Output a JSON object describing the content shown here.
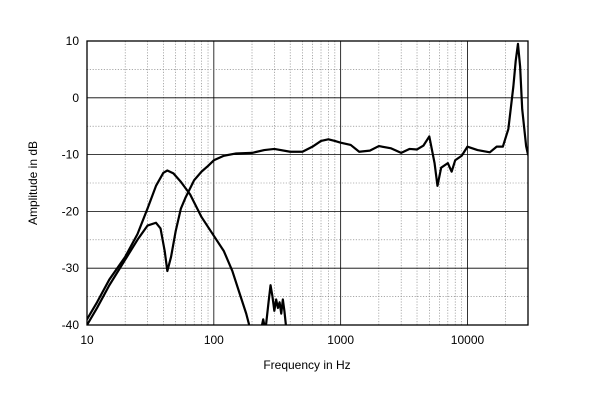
{
  "chart_data": {
    "type": "line",
    "title": "",
    "xlabel": "Frequency in Hz",
    "ylabel": "Amplitude in dB",
    "x_scale": "log",
    "xlim": [
      10,
      30000
    ],
    "ylim": [
      -40,
      10
    ],
    "x_ticks": [
      10,
      100,
      1000,
      10000
    ],
    "x_tick_labels": [
      "10",
      "100",
      "1000",
      "10000"
    ],
    "y_ticks": [
      10,
      0,
      -10,
      -20,
      -30,
      -40
    ],
    "y_tick_labels": [
      "10",
      "0",
      "-10",
      "-20",
      "-30",
      "-40"
    ],
    "grid": true,
    "legend": "none",
    "line_color": "#000000",
    "series": [
      {
        "points": [
          [
            10,
            -40
          ],
          [
            12,
            -37
          ],
          [
            15,
            -33
          ],
          [
            20,
            -28.5
          ],
          [
            25,
            -25
          ],
          [
            30,
            -22.5
          ],
          [
            35,
            -22
          ],
          [
            38,
            -23
          ],
          [
            41,
            -27
          ],
          [
            43,
            -30.5
          ],
          [
            46,
            -28
          ],
          [
            50,
            -23.5
          ],
          [
            55,
            -19.5
          ],
          [
            60,
            -17.5
          ],
          [
            70,
            -14.5
          ],
          [
            80,
            -13
          ],
          [
            90,
            -12
          ],
          [
            100,
            -11
          ],
          [
            120,
            -10.2
          ],
          [
            150,
            -9.8
          ],
          [
            200,
            -9.7
          ],
          [
            250,
            -9.2
          ],
          [
            300,
            -9.0
          ],
          [
            400,
            -9.5
          ],
          [
            500,
            -9.5
          ],
          [
            600,
            -8.6
          ],
          [
            700,
            -7.6
          ],
          [
            800,
            -7.3
          ],
          [
            900,
            -7.6
          ],
          [
            1000,
            -7.9
          ],
          [
            1200,
            -8.3
          ],
          [
            1400,
            -9.5
          ],
          [
            1700,
            -9.3
          ],
          [
            2000,
            -8.5
          ],
          [
            2500,
            -8.9
          ],
          [
            3000,
            -9.7
          ],
          [
            3500,
            -9.0
          ],
          [
            4000,
            -9.1
          ],
          [
            4500,
            -8.4
          ],
          [
            5000,
            -6.8
          ],
          [
            5500,
            -11.5
          ],
          [
            5800,
            -15.5
          ],
          [
            6200,
            -12.3
          ],
          [
            7000,
            -11.5
          ],
          [
            7500,
            -13
          ],
          [
            8000,
            -11
          ],
          [
            9000,
            -10.2
          ],
          [
            10000,
            -8.6
          ],
          [
            12000,
            -9.2
          ],
          [
            15000,
            -9.6
          ],
          [
            17000,
            -8.6
          ],
          [
            19000,
            -8.6
          ],
          [
            21000,
            -5.5
          ],
          [
            23000,
            2
          ],
          [
            24000,
            6.5
          ],
          [
            25000,
            9.5
          ],
          [
            26000,
            5.5
          ],
          [
            27000,
            -2
          ],
          [
            29000,
            -8.5
          ],
          [
            30000,
            -10
          ]
        ]
      },
      {
        "points": [
          [
            10,
            -39
          ],
          [
            12,
            -36
          ],
          [
            15,
            -32
          ],
          [
            20,
            -28
          ],
          [
            25,
            -24
          ],
          [
            30,
            -19.5
          ],
          [
            35,
            -15.5
          ],
          [
            40,
            -13.2
          ],
          [
            43,
            -12.8
          ],
          [
            48,
            -13.3
          ],
          [
            55,
            -14.8
          ],
          [
            65,
            -17
          ],
          [
            80,
            -21
          ],
          [
            100,
            -24.3
          ],
          [
            120,
            -27
          ],
          [
            140,
            -30.5
          ],
          [
            160,
            -34.5
          ],
          [
            180,
            -38
          ],
          [
            190,
            -40
          ]
        ]
      },
      {
        "points": [
          [
            230,
            -42
          ],
          [
            245,
            -39
          ],
          [
            255,
            -41
          ],
          [
            270,
            -36
          ],
          [
            280,
            -33
          ],
          [
            290,
            -35
          ],
          [
            300,
            -37.5
          ],
          [
            310,
            -35.5
          ],
          [
            320,
            -37
          ],
          [
            330,
            -36
          ],
          [
            340,
            -38
          ],
          [
            350,
            -35.5
          ],
          [
            360,
            -37.5
          ],
          [
            370,
            -40
          ],
          [
            380,
            -42
          ]
        ]
      }
    ]
  }
}
